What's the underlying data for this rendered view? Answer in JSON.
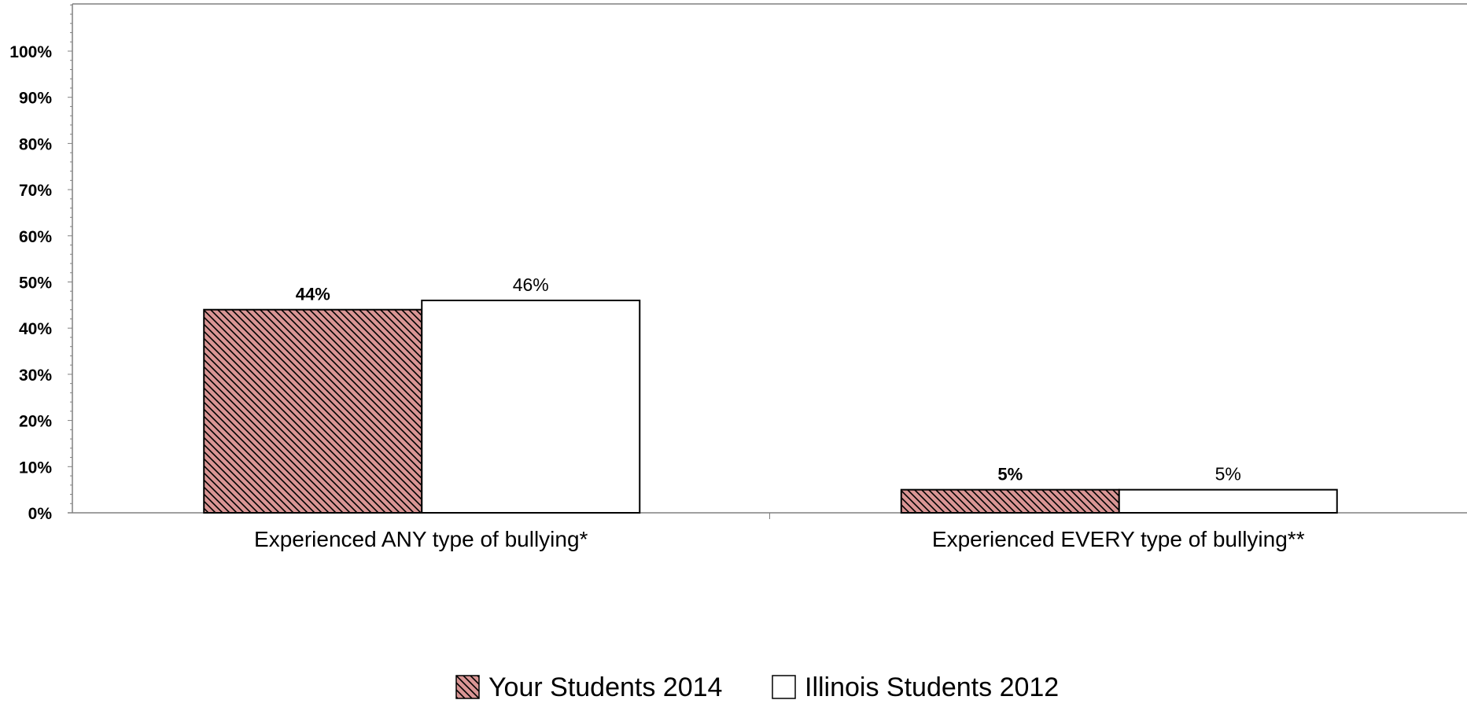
{
  "chart_data": {
    "type": "bar",
    "categories": [
      "Experienced ANY type of bullying*",
      "Experienced EVERY type of bullying**"
    ],
    "series": [
      {
        "name": "Your Students 2014",
        "values": [
          44,
          5
        ],
        "value_labels": [
          "44%",
          "5%"
        ],
        "fill": "#d99594",
        "hatch": "#000000",
        "bold_labels": true
      },
      {
        "name": "Illinois Students 2012",
        "values": [
          46,
          5
        ],
        "value_labels": [
          "46%",
          "5%"
        ],
        "fill": "#ffffff",
        "bold_labels": false
      }
    ],
    "ylim": [
      0,
      100
    ],
    "yticks": [
      "0%",
      "10%",
      "20%",
      "30%",
      "40%",
      "50%",
      "60%",
      "70%",
      "80%",
      "90%",
      "100%"
    ],
    "grid": false,
    "legend_position": "bottom-center",
    "title": "",
    "xlabel": "",
    "ylabel": ""
  }
}
